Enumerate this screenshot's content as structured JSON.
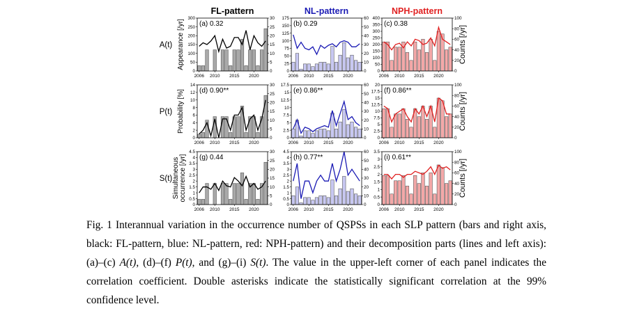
{
  "figure": {
    "columns": [
      {
        "title": "FL-pattern",
        "color": "#000000",
        "bar_fill": "#a9a9a9",
        "line_color": "#000000"
      },
      {
        "title": "NL-pattern",
        "color": "#1a1ab4",
        "bar_fill": "#c8c8f2",
        "line_color": "#1a1ab4"
      },
      {
        "title": "NPH-pattern",
        "color": "#e02020",
        "bar_fill": "#f4a8a8",
        "line_color": "#e02020"
      }
    ],
    "rows": [
      {
        "label": "A(t)",
        "left_axis_label": "Appearance [/yr]"
      },
      {
        "label": "P(t)",
        "left_axis_label": "Probability [%]"
      },
      {
        "label": "S(t)",
        "left_axis_label": "Simultaneous occurrence [/yr]"
      }
    ],
    "right_axis_labels": [
      "",
      "",
      "Counts [/yr]"
    ],
    "x_ticks": [
      2006,
      2010,
      2015,
      2020
    ]
  },
  "chart_data": [
    {
      "id": "a",
      "type": "bar",
      "annotation": "(a) 0.32",
      "x": [
        2006,
        2007,
        2008,
        2009,
        2010,
        2011,
        2012,
        2013,
        2014,
        2015,
        2016,
        2017,
        2018,
        2019,
        2020,
        2021,
        2022,
        2023
      ],
      "left_ylim": [
        0,
        300
      ],
      "left_yticks": [
        0,
        50,
        100,
        150,
        200,
        250,
        300
      ],
      "right_ylim": [
        0,
        30
      ],
      "right_yticks": [
        0,
        5,
        10,
        15,
        20,
        25,
        30
      ],
      "bars": [
        3,
        3,
        12,
        0,
        12,
        0,
        12,
        12,
        3,
        12,
        12,
        18,
        3,
        12,
        12,
        3,
        12,
        24
      ],
      "line": [
        140,
        160,
        150,
        170,
        200,
        110,
        180,
        130,
        140,
        190,
        190,
        150,
        230,
        120,
        200,
        160,
        140,
        170
      ]
    },
    {
      "id": "b",
      "type": "bar",
      "annotation": "(b) 0.29",
      "x": [
        2006,
        2007,
        2008,
        2009,
        2010,
        2011,
        2012,
        2013,
        2014,
        2015,
        2016,
        2017,
        2018,
        2019,
        2020,
        2021,
        2022,
        2023
      ],
      "left_ylim": [
        0,
        175
      ],
      "left_yticks": [
        0,
        25,
        50,
        75,
        100,
        125,
        150,
        175
      ],
      "right_ylim": [
        0,
        60
      ],
      "right_yticks": [
        0,
        10,
        20,
        30,
        40,
        50,
        60
      ],
      "bars": [
        10,
        20,
        2,
        8,
        8,
        5,
        8,
        10,
        10,
        8,
        28,
        10,
        18,
        32,
        15,
        18,
        12,
        10
      ],
      "line": [
        120,
        75,
        95,
        75,
        70,
        80,
        55,
        85,
        75,
        85,
        90,
        80,
        95,
        100,
        95,
        80,
        80,
        90
      ]
    },
    {
      "id": "c",
      "type": "bar",
      "annotation": "(c) 0.38",
      "x": [
        2006,
        2007,
        2008,
        2009,
        2010,
        2011,
        2012,
        2013,
        2014,
        2015,
        2016,
        2017,
        2018,
        2019,
        2020,
        2021,
        2022,
        2023
      ],
      "left_ylim": [
        0,
        400
      ],
      "left_yticks": [
        0,
        50,
        100,
        150,
        200,
        250,
        300,
        350,
        400
      ],
      "right_ylim": [
        0,
        100
      ],
      "right_yticks": [
        0,
        20,
        40,
        60,
        80,
        100
      ],
      "bars": [
        55,
        55,
        20,
        45,
        45,
        55,
        35,
        20,
        55,
        40,
        60,
        35,
        60,
        20,
        75,
        70,
        40,
        45
      ],
      "line": [
        220,
        200,
        160,
        200,
        210,
        175,
        220,
        190,
        240,
        230,
        200,
        210,
        250,
        190,
        330,
        240,
        220,
        200
      ]
    },
    {
      "id": "d",
      "type": "bar",
      "annotation": "(d) 0.90**",
      "x": [
        2006,
        2007,
        2008,
        2009,
        2010,
        2011,
        2012,
        2013,
        2014,
        2015,
        2016,
        2017,
        2018,
        2019,
        2020,
        2021,
        2022,
        2023
      ],
      "left_ylim": [
        0,
        14
      ],
      "left_yticks": [
        0,
        2,
        4,
        6,
        8,
        10,
        12,
        14
      ],
      "right_ylim": [
        0,
        30
      ],
      "right_yticks": [
        0,
        5,
        10,
        15,
        20,
        25,
        30
      ],
      "bars": [
        2,
        3,
        10,
        0,
        12,
        0,
        12,
        12,
        3,
        12,
        12,
        18,
        3,
        12,
        12,
        3,
        12,
        24
      ],
      "line": [
        1,
        2,
        4,
        0.5,
        5,
        0,
        5,
        5,
        2,
        6,
        6,
        8,
        2,
        5,
        6,
        2,
        5,
        10
      ]
    },
    {
      "id": "e",
      "type": "bar",
      "annotation": "(e) 0.86**",
      "x": [
        2006,
        2007,
        2008,
        2009,
        2010,
        2011,
        2012,
        2013,
        2014,
        2015,
        2016,
        2017,
        2018,
        2019,
        2020,
        2021,
        2022,
        2023
      ],
      "left_ylim": [
        0,
        17.5
      ],
      "left_yticks": [
        0,
        2.5,
        5,
        7.5,
        10,
        12.5,
        15,
        17.5
      ],
      "right_ylim": [
        0,
        60
      ],
      "right_yticks": [
        0,
        10,
        20,
        30,
        40,
        50,
        60
      ],
      "bars": [
        10,
        20,
        2,
        8,
        8,
        5,
        8,
        10,
        10,
        8,
        28,
        10,
        18,
        32,
        15,
        18,
        12,
        10
      ],
      "line": [
        3,
        6,
        1.5,
        3.5,
        3,
        2,
        3,
        3.5,
        4,
        3.5,
        9,
        4,
        8,
        12,
        6,
        7,
        5,
        4
      ]
    },
    {
      "id": "f",
      "type": "bar",
      "annotation": "(f) 0.86**",
      "x": [
        2006,
        2007,
        2008,
        2009,
        2010,
        2011,
        2012,
        2013,
        2014,
        2015,
        2016,
        2017,
        2018,
        2019,
        2020,
        2021,
        2022,
        2023
      ],
      "left_ylim": [
        0,
        20
      ],
      "left_yticks": [
        0,
        2.5,
        5,
        7.5,
        10,
        12.5,
        15,
        17.5,
        20
      ],
      "right_ylim": [
        0,
        100
      ],
      "right_yticks": [
        0,
        20,
        40,
        60,
        80,
        100
      ],
      "bars": [
        55,
        55,
        20,
        45,
        45,
        55,
        35,
        20,
        55,
        40,
        60,
        35,
        60,
        20,
        75,
        70,
        40,
        45
      ],
      "line": [
        12,
        11,
        6,
        9,
        10,
        11,
        8,
        6,
        11,
        9,
        12,
        8,
        12,
        6,
        15,
        14,
        9,
        9
      ]
    },
    {
      "id": "g",
      "type": "bar",
      "annotation": "(g) 0.44",
      "x": [
        2006,
        2007,
        2008,
        2009,
        2010,
        2011,
        2012,
        2013,
        2014,
        2015,
        2016,
        2017,
        2018,
        2019,
        2020,
        2021,
        2022,
        2023
      ],
      "left_ylim": [
        0,
        4.5
      ],
      "left_yticks": [
        0,
        0.5,
        1,
        1.5,
        2,
        2.5,
        3,
        3.5,
        4,
        4.5
      ],
      "right_ylim": [
        0,
        30
      ],
      "right_yticks": [
        0,
        5,
        10,
        15,
        20,
        25,
        30
      ],
      "bars": [
        3,
        3,
        12,
        0,
        12,
        0,
        12,
        12,
        3,
        12,
        12,
        18,
        3,
        12,
        12,
        3,
        12,
        24
      ],
      "line": [
        1,
        1.5,
        1.5,
        1.3,
        1.8,
        1.2,
        2,
        1.6,
        1.5,
        2.3,
        2,
        1.6,
        2.4,
        1.5,
        1.8,
        1.3,
        1.5,
        2
      ]
    },
    {
      "id": "h",
      "type": "bar",
      "annotation": "(h) 0.77**",
      "x": [
        2006,
        2007,
        2008,
        2009,
        2010,
        2011,
        2012,
        2013,
        2014,
        2015,
        2016,
        2017,
        2018,
        2019,
        2020,
        2021,
        2022,
        2023
      ],
      "left_ylim": [
        0,
        4.5
      ],
      "left_yticks": [
        0,
        0.5,
        1,
        1.5,
        2,
        2.5,
        3,
        3.5,
        4,
        4.5
      ],
      "right_ylim": [
        0,
        60
      ],
      "right_yticks": [
        0,
        10,
        20,
        30,
        40,
        50,
        60
      ],
      "bars": [
        10,
        20,
        2,
        8,
        8,
        5,
        8,
        10,
        10,
        8,
        28,
        10,
        18,
        32,
        15,
        18,
        12,
        10
      ],
      "line": [
        2,
        3.5,
        0.5,
        2,
        2,
        1,
        2,
        2.5,
        2,
        2,
        3.5,
        2,
        3,
        4.5,
        2.5,
        3,
        2.5,
        2
      ]
    },
    {
      "id": "i",
      "type": "bar",
      "annotation": "(i) 0.61**",
      "x": [
        2006,
        2007,
        2008,
        2009,
        2010,
        2011,
        2012,
        2013,
        2014,
        2015,
        2016,
        2017,
        2018,
        2019,
        2020,
        2021,
        2022,
        2023
      ],
      "left_ylim": [
        0,
        3.5
      ],
      "left_yticks": [
        0,
        0.5,
        1,
        1.5,
        2,
        2.5,
        3,
        3.5
      ],
      "right_ylim": [
        0,
        100
      ],
      "right_yticks": [
        0,
        20,
        40,
        60,
        80,
        100
      ],
      "bars": [
        55,
        55,
        20,
        45,
        45,
        55,
        35,
        20,
        55,
        40,
        60,
        35,
        60,
        20,
        75,
        70,
        40,
        45
      ],
      "line": [
        2,
        2,
        1.7,
        2,
        2,
        1.8,
        2,
        2,
        2.2,
        2.1,
        2,
        2.2,
        2.5,
        2,
        2.6,
        2.4,
        2.5,
        2.3
      ]
    }
  ],
  "caption": {
    "p1": "Fig. 1 Interannual variation in the occurrence number of QSPSs in each SLP pattern (bars and right axis, black: FL-pattern, blue: NL-pattern, red: NPH-pattern) and their decomposition parts (lines and left axis): (a)–(c) ",
    "A": "A(t)",
    "p2": ", (d)–(f) ",
    "P": "P(t)",
    "p3": ", and (g)–(i) ",
    "S": "S(t)",
    "p4": ". The value in the upper-left corner of each panel indicates the correlation coefficient. Double asterisks indicate the statistically significant correlation at the 99% confidence level."
  }
}
